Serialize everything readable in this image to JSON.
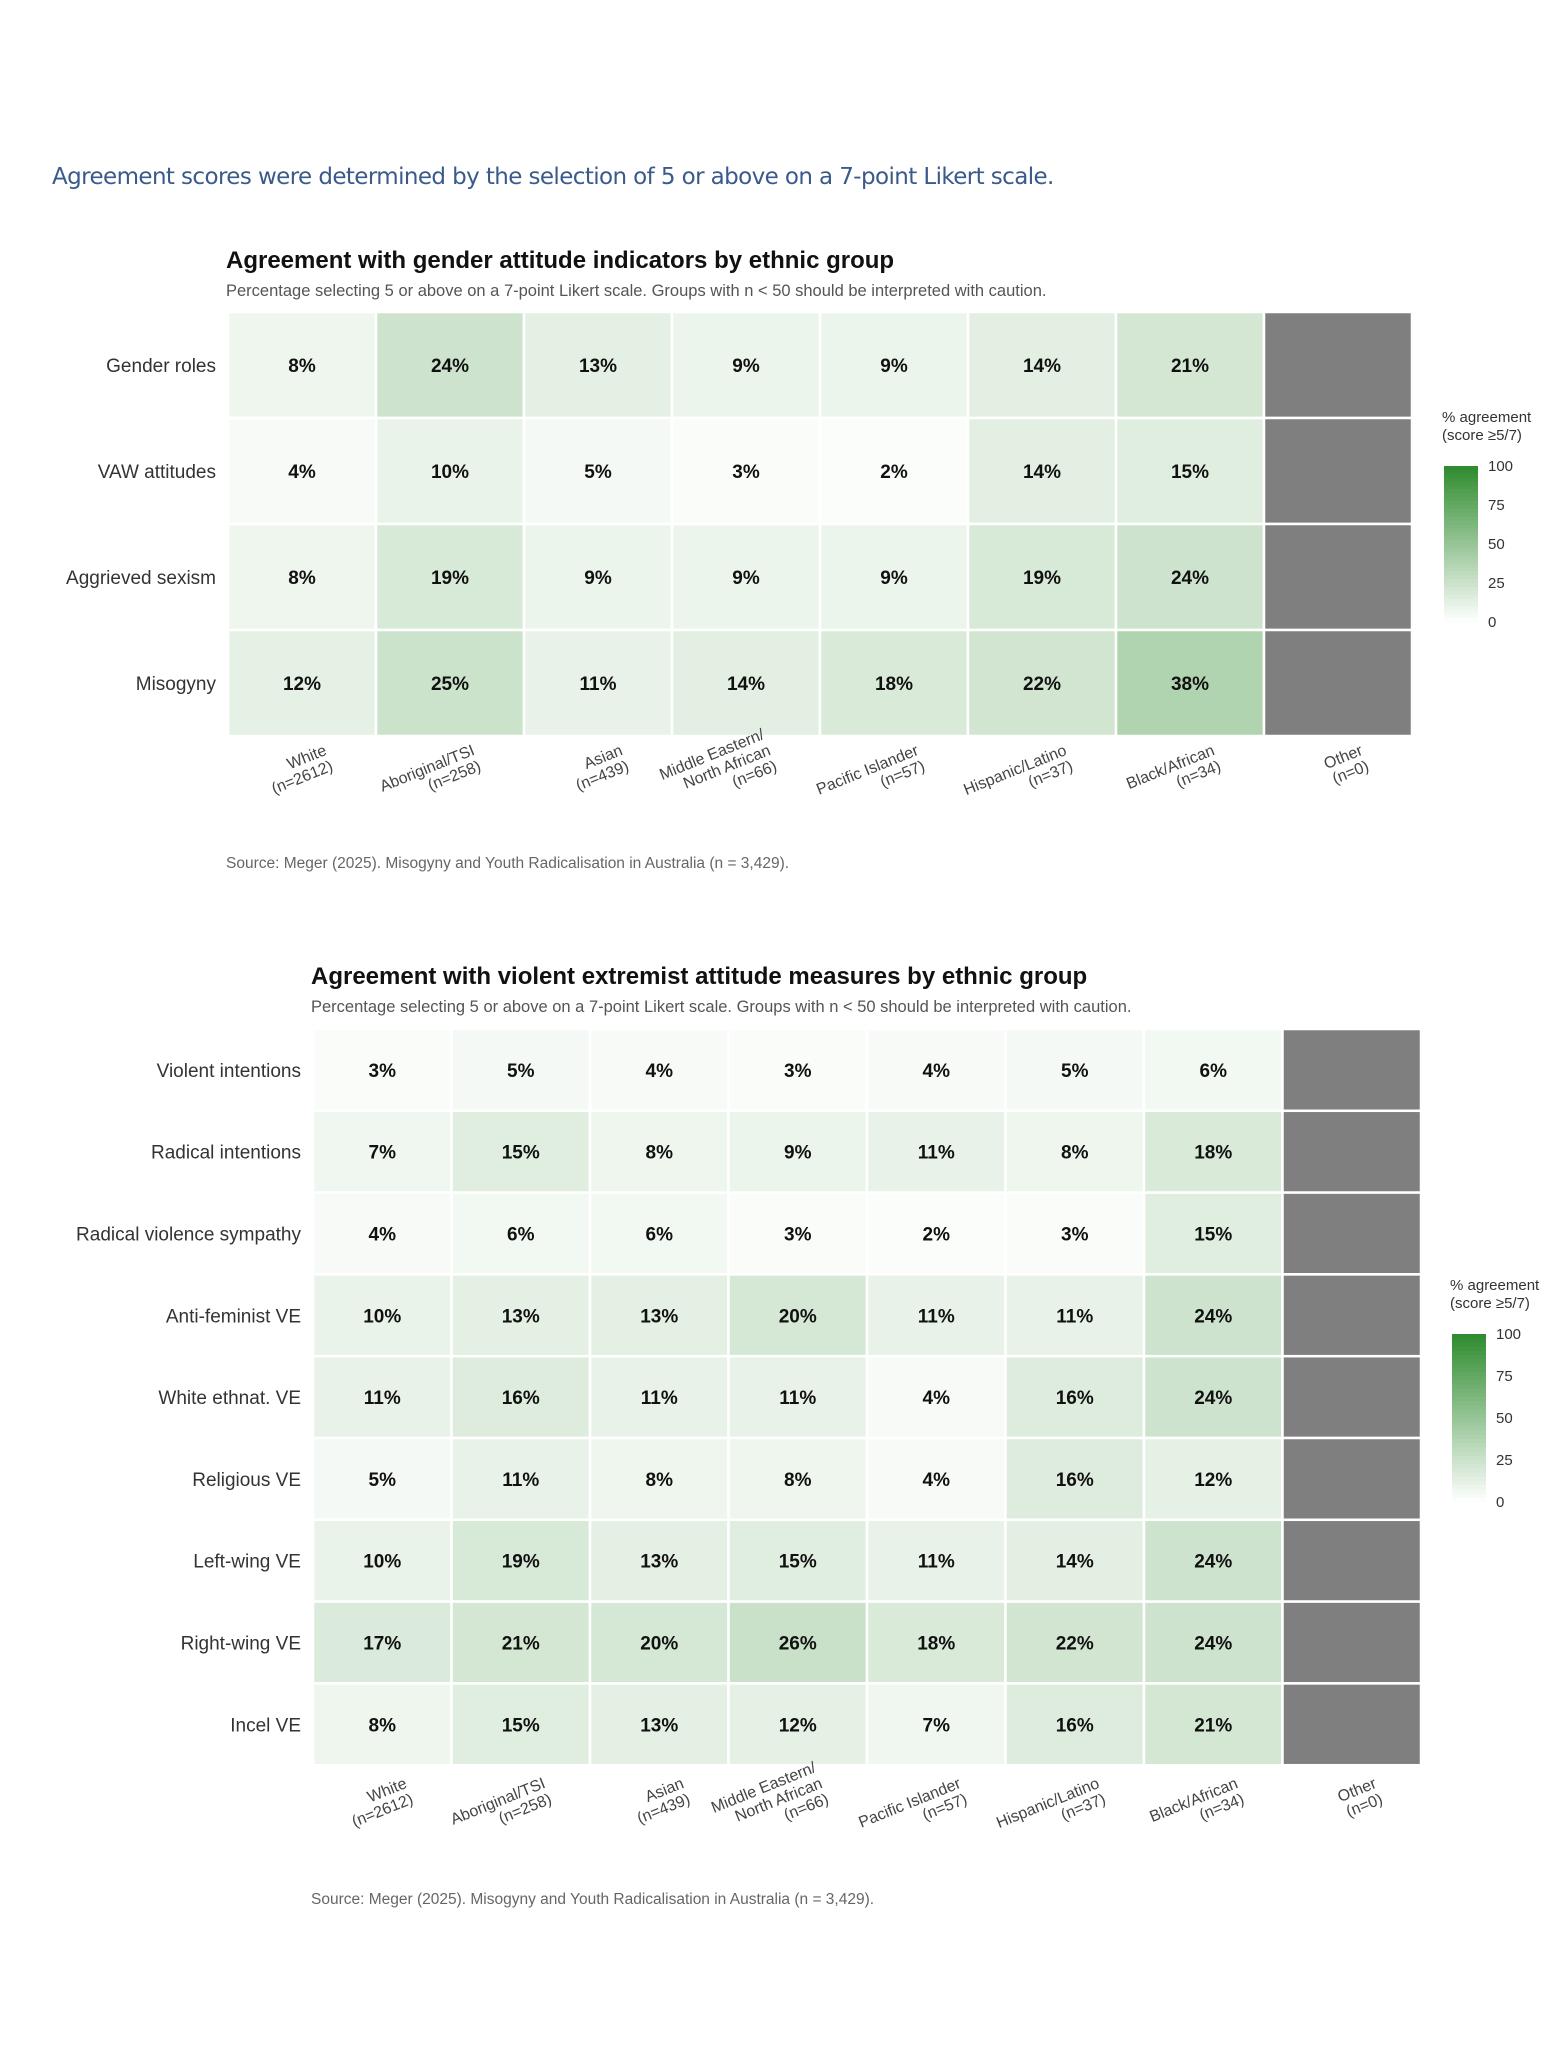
{
  "page": {
    "intro": "Agreement scores were determined by the selection of 5 or above on a 7-point Likert scale."
  },
  "colors": {
    "low": "#ffffff",
    "high": "#2e8b2e",
    "missing": "#7f7f7f"
  },
  "chart_data": [
    {
      "type": "heatmap",
      "title": "Agreement with gender attitude indicators by ethnic group",
      "subtitle": "Percentage selecting 5 or above on a 7-point Likert scale. Groups with n < 50 should be interpreted with caution.",
      "source": "Source: Meger (2025). Misogyny and Youth Radicalisation in Australia (n = 3,429).",
      "x_categories": [
        [
          "White",
          "(n=2612)"
        ],
        [
          "Aboriginal/TSI",
          "(n=258)"
        ],
        [
          "Asian",
          "(n=439)"
        ],
        [
          "Middle Eastern/",
          "North African",
          "(n=66)"
        ],
        [
          "Pacific Islander",
          "(n=57)"
        ],
        [
          "Hispanic/Latino",
          "(n=37)"
        ],
        [
          "Black/African",
          "(n=34)"
        ],
        [
          "Other",
          "(n=0)"
        ]
      ],
      "y_categories": [
        "Gender roles",
        "VAW attitudes",
        "Aggrieved sexism",
        "Misogyny"
      ],
      "values": [
        [
          8,
          24,
          13,
          9,
          9,
          14,
          21,
          null
        ],
        [
          4,
          10,
          5,
          3,
          2,
          14,
          15,
          null
        ],
        [
          8,
          19,
          9,
          9,
          9,
          19,
          24,
          null
        ],
        [
          12,
          25,
          11,
          14,
          18,
          22,
          38,
          null
        ]
      ],
      "value_suffix": "%",
      "legend": {
        "title": [
          "% agreement",
          "(score ≥5/7)"
        ],
        "ticks": [
          100,
          75,
          50,
          25,
          0
        ],
        "range": [
          0,
          100
        ],
        "position": "right"
      }
    },
    {
      "type": "heatmap",
      "title": "Agreement with violent extremist attitude measures by ethnic group",
      "subtitle": "Percentage selecting 5 or above on a 7-point Likert scale. Groups with n < 50 should be interpreted with caution.",
      "source": "Source: Meger (2025). Misogyny and Youth Radicalisation in Australia (n = 3,429).",
      "x_categories": [
        [
          "White",
          "(n=2612)"
        ],
        [
          "Aboriginal/TSI",
          "(n=258)"
        ],
        [
          "Asian",
          "(n=439)"
        ],
        [
          "Middle Eastern/",
          "North African",
          "(n=66)"
        ],
        [
          "Pacific Islander",
          "(n=57)"
        ],
        [
          "Hispanic/Latino",
          "(n=37)"
        ],
        [
          "Black/African",
          "(n=34)"
        ],
        [
          "Other",
          "(n=0)"
        ]
      ],
      "y_categories": [
        "Violent intentions",
        "Radical intentions",
        "Radical violence sympathy",
        "Anti-feminist VE",
        "White ethnat. VE",
        "Religious VE",
        "Left-wing VE",
        "Right-wing VE",
        "Incel VE"
      ],
      "values": [
        [
          3,
          5,
          4,
          3,
          4,
          5,
          6,
          null
        ],
        [
          7,
          15,
          8,
          9,
          11,
          8,
          18,
          null
        ],
        [
          4,
          6,
          6,
          3,
          2,
          3,
          15,
          null
        ],
        [
          10,
          13,
          13,
          20,
          11,
          11,
          24,
          null
        ],
        [
          11,
          16,
          11,
          11,
          4,
          16,
          24,
          null
        ],
        [
          5,
          11,
          8,
          8,
          4,
          16,
          12,
          null
        ],
        [
          10,
          19,
          13,
          15,
          11,
          14,
          24,
          null
        ],
        [
          17,
          21,
          20,
          26,
          18,
          22,
          24,
          null
        ],
        [
          8,
          15,
          13,
          12,
          7,
          16,
          21,
          null
        ]
      ],
      "value_suffix": "%",
      "legend": {
        "title": [
          "% agreement",
          "(score ≥5/7)"
        ],
        "ticks": [
          100,
          75,
          50,
          25,
          0
        ],
        "range": [
          0,
          100
        ],
        "position": "right"
      }
    }
  ]
}
